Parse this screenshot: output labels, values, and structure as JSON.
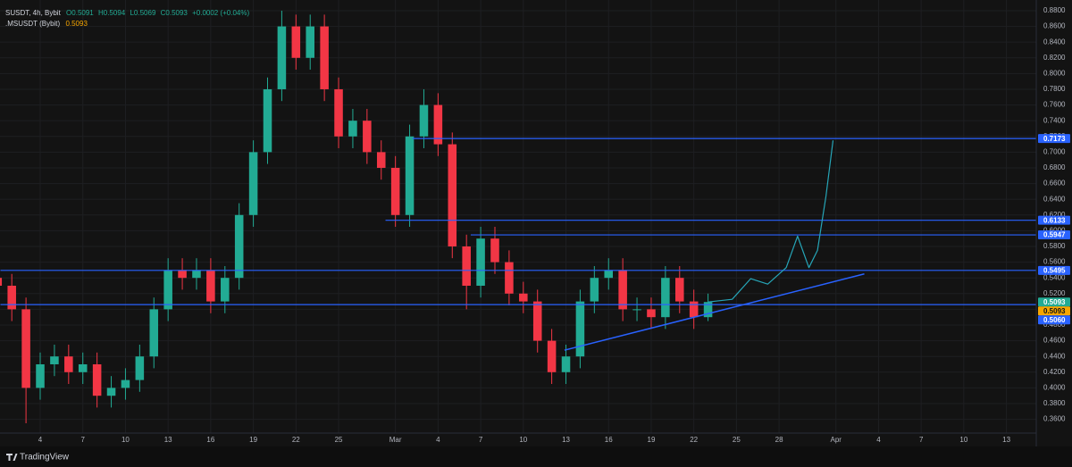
{
  "chart_data": {
    "type": "candlestick",
    "legend": {
      "symbol": "SUSDT, 4h, Bybit",
      "open": "O0.5091",
      "high": "H0.5094",
      "low": "L0.5069",
      "close": "C0.5093",
      "change": "+0.0002 (+0.04%)",
      "compare_symbol": ".MSUSDT (Bybit)",
      "compare_value": "0.5093"
    },
    "x": [
      1,
      2,
      3,
      4,
      5,
      6,
      7,
      8,
      9,
      10,
      11,
      12,
      13,
      14,
      15,
      16,
      17,
      18,
      19,
      20,
      21,
      22,
      23,
      24,
      25,
      26,
      27,
      28,
      29,
      30,
      31,
      32,
      33,
      34,
      35,
      36,
      37,
      38,
      39,
      40,
      41,
      42,
      43,
      44,
      45,
      46,
      47,
      48,
      49,
      50,
      51
    ],
    "open": [
      0.54,
      0.53,
      0.5,
      0.4,
      0.43,
      0.44,
      0.42,
      0.43,
      0.39,
      0.4,
      0.41,
      0.44,
      0.5,
      0.55,
      0.54,
      0.55,
      0.51,
      0.54,
      0.62,
      0.7,
      0.78,
      0.86,
      0.82,
      0.86,
      0.78,
      0.72,
      0.74,
      0.7,
      0.68,
      0.62,
      0.72,
      0.76,
      0.71,
      0.58,
      0.53,
      0.59,
      0.56,
      0.52,
      0.51,
      0.46,
      0.42,
      0.44,
      0.51,
      0.54,
      0.55,
      0.5,
      0.5,
      0.49,
      0.54,
      0.51,
      0.49
    ],
    "high": [
      0.555,
      0.545,
      0.515,
      0.445,
      0.455,
      0.455,
      0.445,
      0.445,
      0.415,
      0.425,
      0.455,
      0.515,
      0.565,
      0.565,
      0.565,
      0.565,
      0.555,
      0.635,
      0.715,
      0.795,
      0.88,
      0.875,
      0.875,
      0.875,
      0.795,
      0.755,
      0.755,
      0.715,
      0.695,
      0.735,
      0.78,
      0.775,
      0.725,
      0.595,
      0.605,
      0.605,
      0.575,
      0.535,
      0.525,
      0.475,
      0.455,
      0.525,
      0.555,
      0.565,
      0.565,
      0.515,
      0.515,
      0.555,
      0.555,
      0.525,
      0.52
    ],
    "low": [
      0.515,
      0.485,
      0.355,
      0.385,
      0.415,
      0.405,
      0.405,
      0.375,
      0.375,
      0.385,
      0.395,
      0.425,
      0.485,
      0.525,
      0.525,
      0.495,
      0.495,
      0.525,
      0.605,
      0.685,
      0.765,
      0.805,
      0.805,
      0.765,
      0.705,
      0.705,
      0.685,
      0.665,
      0.605,
      0.605,
      0.705,
      0.695,
      0.565,
      0.5,
      0.515,
      0.545,
      0.505,
      0.495,
      0.445,
      0.405,
      0.405,
      0.425,
      0.495,
      0.525,
      0.485,
      0.485,
      0.475,
      0.475,
      0.495,
      0.475,
      0.485
    ],
    "close": [
      0.53,
      0.5,
      0.4,
      0.43,
      0.44,
      0.42,
      0.43,
      0.39,
      0.4,
      0.41,
      0.44,
      0.5,
      0.55,
      0.54,
      0.55,
      0.51,
      0.54,
      0.62,
      0.7,
      0.78,
      0.86,
      0.82,
      0.86,
      0.78,
      0.72,
      0.74,
      0.7,
      0.68,
      0.62,
      0.72,
      0.76,
      0.71,
      0.58,
      0.53,
      0.59,
      0.56,
      0.52,
      0.51,
      0.46,
      0.42,
      0.44,
      0.51,
      0.54,
      0.55,
      0.5,
      0.5,
      0.49,
      0.54,
      0.51,
      0.49,
      0.5093
    ],
    "up_color": "#22ab94",
    "down_color": "#f23645",
    "levels": [
      {
        "value": 0.7173,
        "label": "0.7173",
        "start": 30.2
      },
      {
        "value": 0.6133,
        "label": "0.6133",
        "start": 28.3
      },
      {
        "value": 0.5947,
        "label": "0.5947",
        "start": 34.3
      },
      {
        "value": 0.5495,
        "label": "0.5495",
        "start": 1.2
      },
      {
        "value": 0.506,
        "label": "0.5060",
        "start": 1.2
      }
    ],
    "level_color": "#2962ff",
    "price_tags": [
      {
        "value": 0.5093,
        "label": "0.5093",
        "color": "#22ab94"
      },
      {
        "value": 0.5093,
        "label": "0.5093",
        "color": "#f7a600"
      }
    ],
    "trendline": {
      "x": [
        40.9,
        62
      ],
      "values": [
        0.448,
        0.545
      ],
      "color": "#2962ff"
    },
    "projection": {
      "x": [
        51,
        52.7,
        54.0,
        55.2,
        56.5,
        57.3,
        58.1,
        58.7,
        59.3,
        59.8
      ],
      "values": [
        0.5093,
        0.5127,
        0.539,
        0.532,
        0.553,
        0.593,
        0.553,
        0.575,
        0.644,
        0.715
      ],
      "color": "#26a6b8"
    },
    "xlim": [
      1.17,
      74.1
    ],
    "ylim": [
      0.3425,
      0.8936
    ],
    "xticks": [
      4,
      7,
      10,
      13,
      16,
      19,
      22,
      25,
      {
        "value": 29,
        "label": "Mar"
      },
      {
        "value": 32,
        "label": "4"
      },
      {
        "value": 35,
        "label": "7"
      },
      {
        "value": 38,
        "label": "10"
      },
      {
        "value": 41,
        "label": "13"
      },
      {
        "value": 44,
        "label": "16"
      },
      {
        "value": 47,
        "label": "19"
      },
      {
        "value": 50,
        "label": "22"
      },
      {
        "value": 53,
        "label": "25"
      },
      {
        "value": 56,
        "label": "28"
      },
      {
        "value": 60,
        "label": "Apr"
      },
      {
        "value": 63,
        "label": "4"
      },
      {
        "value": 66,
        "label": "7"
      },
      {
        "value": 69,
        "label": "10"
      },
      {
        "value": 72,
        "label": "13"
      }
    ],
    "yticks": [
      {
        "value": 0.36,
        "label": "0.3600"
      },
      {
        "value": 0.38,
        "label": "0.3800"
      },
      {
        "value": 0.4,
        "label": "0.4000"
      },
      {
        "value": 0.42,
        "label": "0.4200"
      },
      {
        "value": 0.44,
        "label": "0.4400"
      },
      {
        "value": 0.46,
        "label": "0.4600"
      },
      {
        "value": 0.48,
        "label": "0.4800"
      },
      {
        "value": 0.5,
        "label": "0.5000"
      },
      {
        "value": 0.52,
        "label": "0.5200"
      },
      {
        "value": 0.54,
        "label": "0.5400"
      },
      {
        "value": 0.56,
        "label": "0.5600"
      },
      {
        "value": 0.58,
        "label": "0.5800"
      },
      {
        "value": 0.6,
        "label": "0.6000"
      },
      {
        "value": 0.62,
        "label": "0.6200"
      },
      {
        "value": 0.64,
        "label": "0.6400"
      },
      {
        "value": 0.66,
        "label": "0.6600"
      },
      {
        "value": 0.68,
        "label": "0.6800"
      },
      {
        "value": 0.7,
        "label": "0.7000"
      },
      {
        "value": 0.72,
        "label": "0.7200"
      },
      {
        "value": 0.74,
        "label": "0.7400"
      },
      {
        "value": 0.76,
        "label": "0.7600"
      },
      {
        "value": 0.78,
        "label": "0.7800"
      },
      {
        "value": 0.8,
        "label": "0.8000"
      },
      {
        "value": 0.82,
        "label": "0.8200"
      },
      {
        "value": 0.84,
        "label": "0.8400"
      },
      {
        "value": 0.86,
        "label": "0.8600"
      },
      {
        "value": 0.88,
        "label": "0.8800"
      }
    ],
    "grid": true,
    "footer": "TradingView"
  }
}
